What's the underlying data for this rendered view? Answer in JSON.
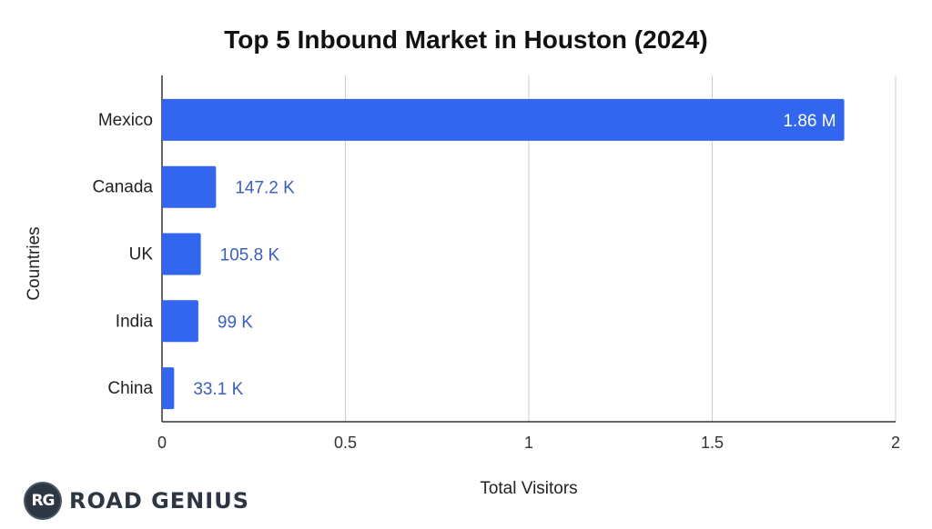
{
  "chart_data": {
    "type": "bar",
    "orientation": "horizontal",
    "title": "Top 5 Inbound Market in Houston (2024)",
    "xlabel": "Total Visitors",
    "ylabel": "Countries",
    "categories": [
      "Mexico",
      "Canada",
      "UK",
      "India",
      "China"
    ],
    "values": [
      1860000,
      147200,
      105800,
      99000,
      33100
    ],
    "data_labels": [
      "1.86 M",
      "147.2 K",
      "105.8 K",
      "99 K",
      "33.1 K"
    ],
    "x_ticks": [
      0,
      0.5,
      1,
      1.5,
      2
    ],
    "x_tick_labels": [
      "0",
      "0.5",
      "1",
      "1.5",
      "2"
    ],
    "x_unit_in_values": 1000000,
    "xlim": [
      0,
      2000000
    ],
    "grid": true,
    "bar_color": "#3366ee",
    "label_color": "#3b5fc0"
  },
  "branding": {
    "logo_initials": "RG",
    "logo_name": "ROAD GENIUS"
  }
}
